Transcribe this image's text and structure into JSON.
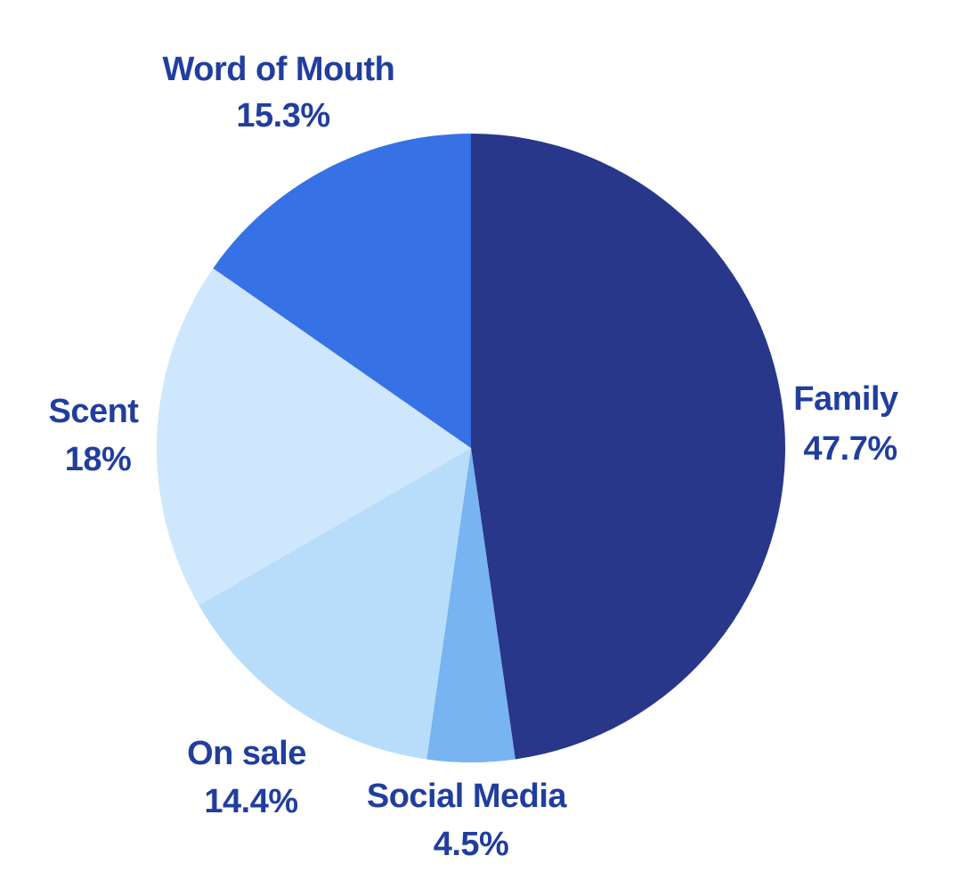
{
  "chart_data": {
    "type": "pie",
    "start_angle": "12 o'clock",
    "direction": "clockwise",
    "label_color": "#213E9E",
    "slices": [
      {
        "label": "Family",
        "value": 47.7,
        "value_label": "47.7%",
        "color": "#28378A"
      },
      {
        "label": "Social Media",
        "value": 4.5,
        "value_label": "4.5%",
        "color": "#78B3F2"
      },
      {
        "label": "On sale",
        "value": 14.4,
        "value_label": "14.4%",
        "color": "#B7DDFB"
      },
      {
        "label": "Scent",
        "value": 18,
        "value_label": "18%",
        "color": "#CFE7FC"
      },
      {
        "label": "Word of Mouth",
        "value": 15.3,
        "value_label": "15.3%",
        "color": "#3771E6"
      }
    ]
  }
}
